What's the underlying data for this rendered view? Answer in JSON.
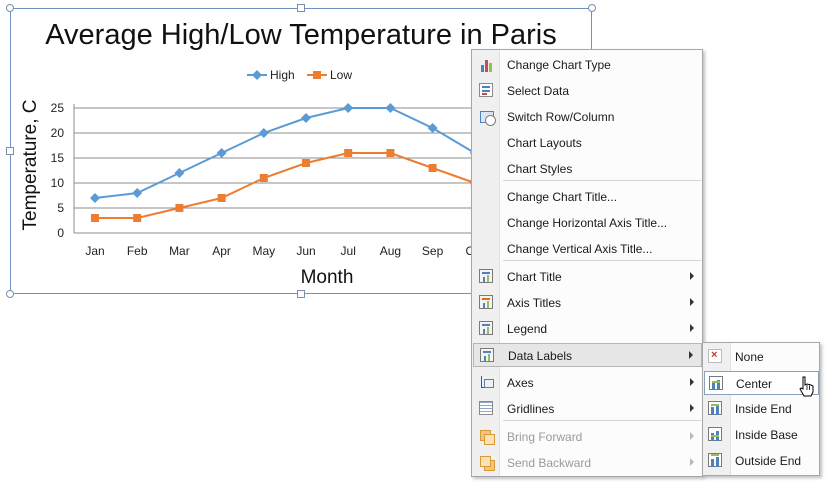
{
  "chart_data": {
    "type": "line",
    "title": "Average High/Low Temperature in Paris",
    "xlabel": "Month",
    "ylabel": "Temperature, C",
    "categories": [
      "Jan",
      "Feb",
      "Mar",
      "Apr",
      "May",
      "Jun",
      "Jul",
      "Aug",
      "Sep",
      "Oct"
    ],
    "series": [
      {
        "name": "High",
        "values": [
          7,
          8,
          12,
          16,
          20,
          23,
          25,
          25,
          21,
          16
        ],
        "color": "#5b9bd5",
        "marker": "diamond"
      },
      {
        "name": "Low",
        "values": [
          3,
          3,
          5,
          7,
          11,
          14,
          16,
          16,
          13,
          10
        ],
        "color": "#ed7d31",
        "marker": "square"
      }
    ],
    "ylim": [
      0,
      25
    ],
    "yticks": [
      0,
      5,
      10,
      15,
      20,
      25
    ],
    "grid": true,
    "legend": "top"
  },
  "context_menu": {
    "items": [
      {
        "label": "Change Chart Type",
        "icon": "chart-type-icon"
      },
      {
        "label": "Select Data",
        "icon": "select-data-icon"
      },
      {
        "label": "Switch Row/Column",
        "icon": "switch-row-column-icon"
      },
      {
        "label": "Chart Layouts"
      },
      {
        "label": "Chart Styles"
      },
      {
        "label": "Change Chart Title..."
      },
      {
        "label": "Change Horizontal Axis Title..."
      },
      {
        "label": "Change Vertical Axis Title..."
      },
      {
        "label": "Chart Title",
        "icon": "chart-title-icon"
      },
      {
        "label": "Axis Titles",
        "icon": "axis-titles-icon"
      },
      {
        "label": "Legend",
        "icon": "legend-icon"
      },
      {
        "label": "Data Labels",
        "icon": "data-labels-icon"
      },
      {
        "label": "Axes",
        "icon": "axes-icon"
      },
      {
        "label": "Gridlines",
        "icon": "gridlines-icon"
      },
      {
        "label": "Bring Forward",
        "icon": "bring-forward-icon"
      },
      {
        "label": "Send Backward",
        "icon": "send-backward-icon"
      }
    ]
  },
  "data_labels_submenu": {
    "items": [
      {
        "label": "None",
        "icon": "none-icon"
      },
      {
        "label": "Center",
        "icon": "label-center-icon"
      },
      {
        "label": "Inside End",
        "icon": "label-inside-end-icon"
      },
      {
        "label": "Inside Base",
        "icon": "label-inside-base-icon"
      },
      {
        "label": "Outside End",
        "icon": "label-outside-end-icon"
      }
    ]
  }
}
